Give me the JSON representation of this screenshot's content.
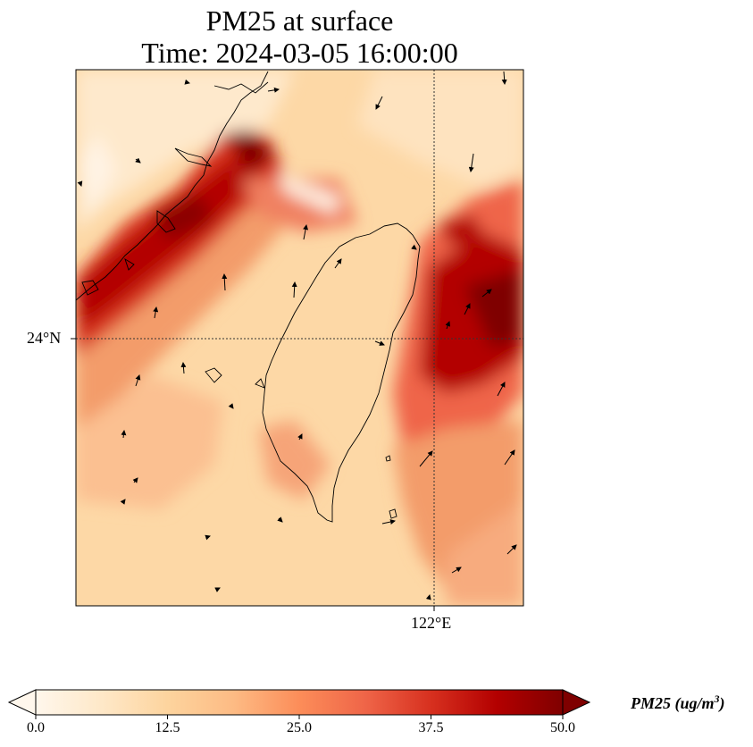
{
  "title": {
    "line1": "PM25 at surface",
    "line2": "Time: 2024-03-05 16:00:00"
  },
  "map": {
    "lat_label": "24°N",
    "lon_label": "122°E",
    "gridline_style": "dotted",
    "features": [
      "coastline-taiwan",
      "coastline-china-fujian",
      "wind-vectors",
      "pm25-field"
    ]
  },
  "colorbar": {
    "label_main": "PM25 (ug/m",
    "label_sup": "3",
    "label_end": ")",
    "ticks": [
      "0.0",
      "12.5",
      "25.0",
      "37.5",
      "50.0"
    ],
    "min": 0,
    "max": 50,
    "colormap": "OrRd",
    "extend": "both",
    "stops": [
      "#fff7ec",
      "#fee8c8",
      "#fdd49e",
      "#fdbb84",
      "#fc8d59",
      "#ef6548",
      "#d7301f",
      "#b30000",
      "#7f0000"
    ]
  }
}
